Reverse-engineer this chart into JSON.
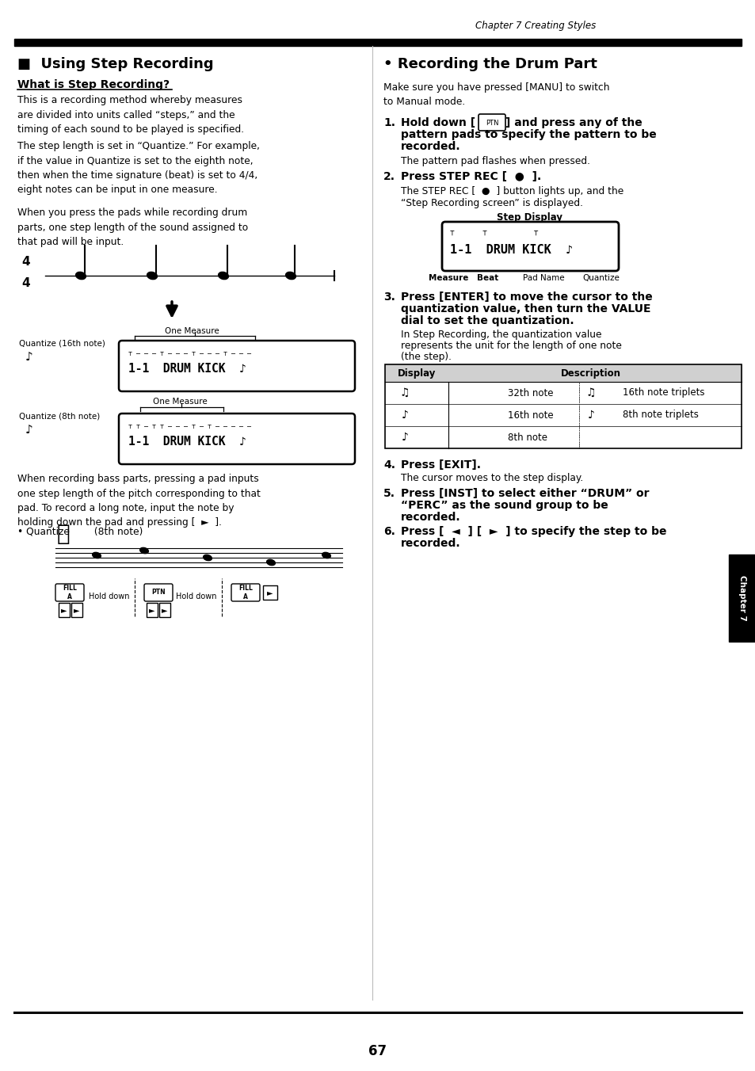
{
  "page_header": "Chapter 7 Creating Styles",
  "left_col_title": "■  Using Step Recording",
  "left_sub_title": "What is Step Recording?",
  "left_para1": "This is a recording method whereby measures\nare divided into units called “steps,” and the\ntiming of each sound to be played is specified.",
  "left_para2": "The step length is set in “Quantize.” For example,\nif the value in Quantize is set to the eighth note,\nthen when the time signature (beat) is set to 4/4,\neight notes can be input in one measure.",
  "left_para3": "When you press the pads while recording drum\nparts, one step length of the sound assigned to\nthat pad will be input.",
  "left_para4": "When recording bass parts, pressing a pad inputs\none step length of the pitch corresponding to that\npad. To record a long note, input the note by\nholding down the pad and pressing [  ►  ].",
  "left_quantize16": "Quantize (16th note)",
  "left_quantize8": "Quantize (8th note)",
  "left_bass_quantize": "• Quantize        (8th note)",
  "right_col_title": "• Recording the Drum Part",
  "right_intro": "Make sure you have pressed [MANU] to switch\nto Manual mode.",
  "step2_bold": "Press STEP REC [  ●  ].",
  "step2_normal_1": "The STEP REC [  ●  ] button lights up, and the",
  "step2_normal_2": "“Step Recording screen” is displayed.",
  "step_display_title": "Step Display",
  "step_display_labels": [
    "Measure",
    "Beat",
    "Pad Name",
    "Quantize"
  ],
  "step3_bold_1": "Press [ENTER] to move the cursor to the",
  "step3_bold_2": "quantization value, then turn the VALUE",
  "step3_bold_3": "dial to set the quantization.",
  "step3_normal_1": "In Step Recording, the quantization value",
  "step3_normal_2": "represents the unit for the length of one note",
  "step3_normal_3": "(the step).",
  "step4_bold": "Press [EXIT].",
  "step4_normal": "The cursor moves to the step display.",
  "step5_bold_1": "Press [INST] to select either “DRUM” or",
  "step5_bold_2": "“PERC” as the sound group to be",
  "step5_bold_3": "recorded.",
  "step6_bold_1": "Press [  ◄  ] [  ►  ] to specify the step to be",
  "step6_bold_2": "recorded.",
  "page_number": "67",
  "bg_color": "#ffffff",
  "text_color": "#000000"
}
